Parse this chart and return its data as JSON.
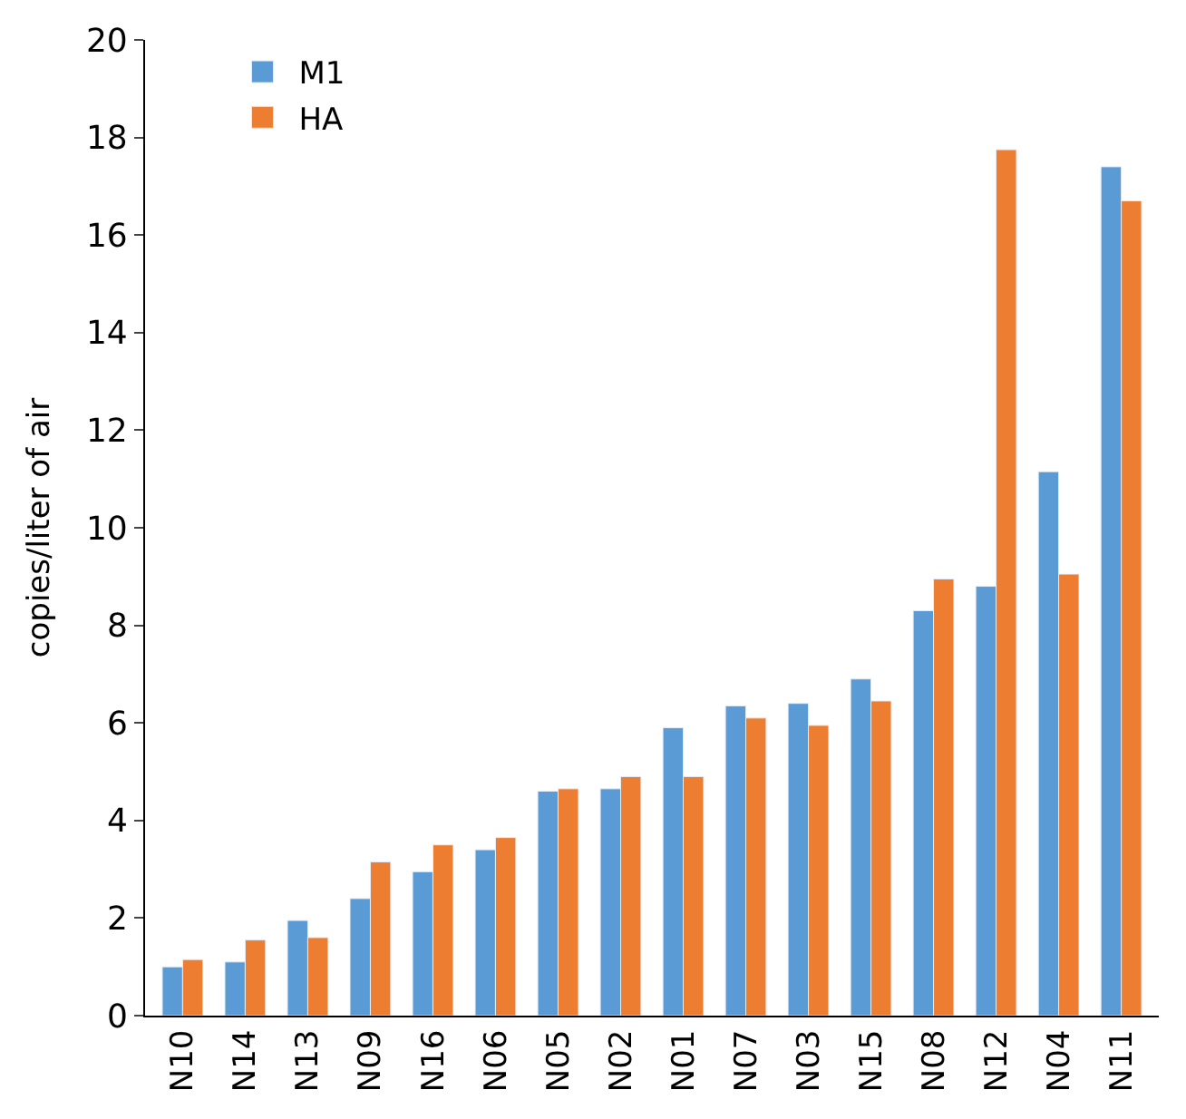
{
  "chart_data": {
    "type": "bar",
    "ylabel": "copies/liter of air",
    "categories": [
      "N10",
      "N14",
      "N13",
      "N09",
      "N16",
      "N06",
      "N05",
      "N02",
      "N01",
      "N07",
      "N03",
      "N15",
      "N08",
      "N12",
      "N04",
      "N11"
    ],
    "series": [
      {
        "name": "M1",
        "color": "#5b9bd5",
        "values": [
          1.0,
          1.1,
          1.95,
          2.4,
          2.95,
          3.4,
          4.6,
          4.65,
          5.9,
          6.35,
          6.4,
          6.9,
          8.3,
          8.8,
          11.15,
          17.4
        ]
      },
      {
        "name": "HA",
        "color": "#ed7d31",
        "values": [
          1.15,
          1.55,
          1.6,
          3.15,
          3.5,
          3.65,
          4.65,
          4.9,
          4.9,
          6.1,
          5.95,
          6.45,
          8.95,
          17.75,
          9.05,
          16.7
        ]
      }
    ],
    "ylim": [
      0,
      20
    ],
    "yticks": [
      0,
      2,
      4,
      6,
      8,
      10,
      12,
      14,
      16,
      18,
      20
    ],
    "legend": "top left"
  }
}
